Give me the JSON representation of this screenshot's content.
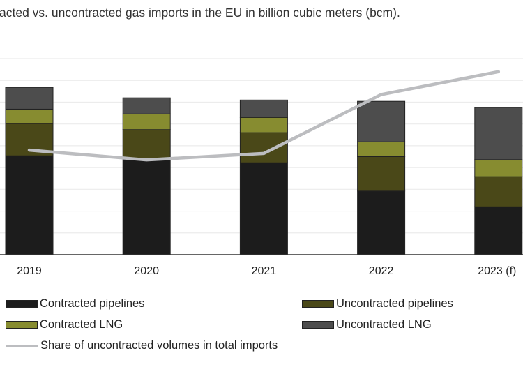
{
  "chart_data": {
    "type": "bar",
    "stacked": true,
    "title": "acted vs. uncontracted gas imports in the EU in billion cubic meters (bcm).",
    "categories": [
      "2019",
      "2020",
      "2021",
      "2022",
      "2023 (f)"
    ],
    "ylim": [
      0,
      450
    ],
    "grid": true,
    "grid_step": 50,
    "legend_placement": "bottom",
    "series": [
      {
        "name": "Contracted pipelines",
        "color": "#1c1c1c",
        "values": [
          227,
          221,
          211,
          146,
          110
        ]
      },
      {
        "name": "Uncontracted pipelines",
        "color": "#4a4818",
        "values": [
          74,
          66,
          69,
          79,
          69
        ]
      },
      {
        "name": "Contracted LNG",
        "color": "#878c30",
        "values": [
          33,
          36,
          35,
          34,
          39
        ]
      },
      {
        "name": "Uncontracted LNG",
        "color": "#4d4d4d",
        "values": [
          50,
          37,
          40,
          93,
          120
        ]
      }
    ],
    "line_series": {
      "name": "Share of uncontracted volumes in total imports",
      "type": "line",
      "color": "#bcbdc0",
      "unit": "%",
      "ylim": [
        0,
        60
      ],
      "values": [
        32,
        29,
        31,
        49,
        56
      ]
    }
  }
}
